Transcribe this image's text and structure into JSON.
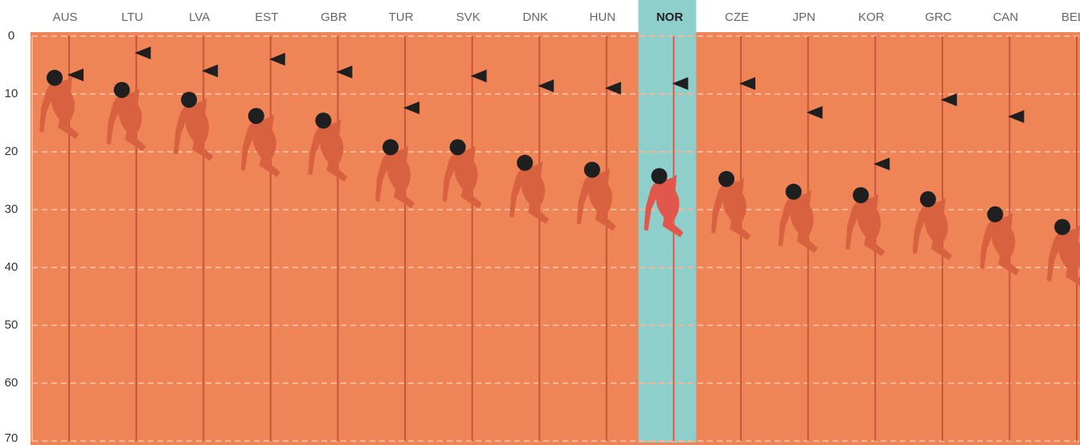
{
  "chart_data": {
    "type": "dot",
    "categories": [
      "AUS",
      "LTU",
      "LVA",
      "EST",
      "GBR",
      "TUR",
      "SVK",
      "DNK",
      "HUN",
      "NOR",
      "CZE",
      "JPN",
      "KOR",
      "GRC",
      "CAN",
      "BEL"
    ],
    "highlight": "NOR",
    "series": [
      {
        "color": "#1f1f1f",
        "marker": "circle",
        "values": [
          7.2,
          9.3,
          11,
          13.8,
          14.6,
          19.2,
          19.2,
          21.9,
          23.1,
          24.2,
          24.7,
          26.9,
          27.5,
          28.2,
          30.8,
          33
        ]
      },
      {
        "color": "#1f1f1f",
        "marker": "triangle",
        "values": [
          6.7,
          2.9,
          6,
          4,
          6.2,
          12.4,
          6.9,
          8.6,
          9,
          8.2,
          8.2,
          13.2,
          22.1,
          11,
          13.9,
          null
        ]
      }
    ],
    "ylim": [
      0,
      70
    ],
    "yticks": [
      0,
      10,
      20,
      30,
      40,
      50,
      60,
      70
    ],
    "y_inverted": true,
    "grid": true
  }
}
